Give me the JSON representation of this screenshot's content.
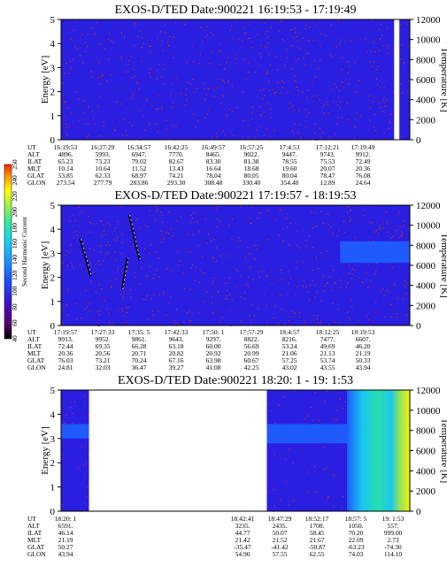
{
  "colors": {
    "background": "#2a1ee0",
    "sparse_dot": "#c03020",
    "colorbar": [
      "#000000",
      "#5a0070",
      "#3a10c8",
      "#1e48ff",
      "#1a96ff",
      "#17d2f0",
      "#28e8a8",
      "#9ef04a",
      "#ffff00",
      "#ff9a00",
      "#ff2000"
    ]
  },
  "colorbar": {
    "label": "Second Harmonic Current",
    "ticks": [
      "40",
      "60",
      "80",
      "100",
      "120",
      "140",
      "160",
      "180",
      "200",
      "220",
      "240",
      "250"
    ]
  },
  "chart_data": [
    {
      "type": "heatmap",
      "title": "EXOS-D/TED   Date:900221   16:19:53 - 17:19:49",
      "ylabel": "Energy [eV]",
      "ylabel_right": "Temperature [K]",
      "ylim": [
        0,
        5
      ],
      "yticks": [
        "0",
        "1",
        "2",
        "3",
        "4",
        "5"
      ],
      "ylim_right": [
        0,
        12000
      ],
      "yticks_right": [
        "0",
        "2000",
        "4000",
        "6000",
        "8000",
        "10000",
        "12000"
      ],
      "data_gap_fraction": [
        0.955,
        0.97
      ],
      "features": [],
      "table": {
        "row_labels": [
          "UT",
          "ALT",
          "ILAT",
          "MLT",
          "GLAT",
          "GLON"
        ],
        "columns": [
          [
            "16:19:53",
            "4896.",
            "65.23",
            "10.14",
            "53.85",
            "273.54"
          ],
          [
            "16:27:29",
            "5993.",
            "73.23",
            "10.64",
            "62.33",
            "277.79"
          ],
          [
            "16:34:57",
            "6947.",
            "79.02",
            "11.52",
            "68.97",
            "283.86"
          ],
          [
            "16:42:25",
            "7770.",
            "82.67",
            "13.43",
            "74.21",
            "293.30"
          ],
          [
            "16:49:57",
            "8465.",
            "83.30",
            "16.64",
            "78.04",
            "308.48"
          ],
          [
            "16:57:25",
            "9022.",
            "81.38",
            "18.68",
            "80.05",
            "330.40"
          ],
          [
            "17:4:53",
            "9447.",
            "78.55",
            "19.60",
            "80.04",
            "354.40"
          ],
          [
            "17:12:21",
            "9743.",
            "75.53",
            "20.07",
            "78.47",
            "12.89"
          ],
          [
            "17:19:49",
            "9912.",
            "72.49",
            "20.36",
            "76.08",
            "24.64"
          ]
        ]
      }
    },
    {
      "type": "heatmap",
      "title": "EXOS-D/TED   Date:900221   17:19:57 - 18:19:53",
      "ylabel": "Energy [eV]",
      "ylabel_right": "Temperature [K]",
      "ylim": [
        0,
        5
      ],
      "yticks": [
        "0",
        "1",
        "2",
        "3",
        "4",
        "5"
      ],
      "ylim_right": [
        0,
        12000
      ],
      "yticks_right": [
        "0",
        "2000",
        "4000",
        "6000",
        "8000",
        "10000",
        "12000"
      ],
      "features": [
        {
          "kind": "streak",
          "from": [
            0.055,
            3.6
          ],
          "to": [
            0.085,
            2.05
          ]
        },
        {
          "kind": "streak",
          "from": [
            0.195,
            4.6
          ],
          "to": [
            0.225,
            2.7
          ]
        },
        {
          "kind": "streak",
          "from": [
            0.175,
            1.5
          ],
          "to": [
            0.19,
            2.8
          ]
        },
        {
          "kind": "patch",
          "x": [
            0.8,
            1.0
          ],
          "y": [
            2.6,
            3.5
          ]
        }
      ],
      "table": {
        "row_labels": [
          "UT",
          "ALT",
          "ILAT",
          "MLT",
          "GLAT",
          "GLON"
        ],
        "columns": [
          [
            "17:19:57",
            "9913.",
            "72.44",
            "20.36",
            "76.03",
            "24.81"
          ],
          [
            "17:27:33",
            "9952.",
            "69.35",
            "20.56",
            "73.21",
            "32.03"
          ],
          [
            "17:35: 5",
            "9861.",
            "66.28",
            "20.71",
            "70.24",
            "36.47"
          ],
          [
            "17:42:33",
            "9643.",
            "63.18",
            "20.82",
            "67.16",
            "39.27"
          ],
          [
            "17:50: 1",
            "9297.",
            "60.00",
            "20.92",
            "63.98",
            "41.08"
          ],
          [
            "17:57:29",
            "8822.",
            "56.69",
            "20.99",
            "60.67",
            "42.25"
          ],
          [
            "18:4:57",
            "8216.",
            "53.24",
            "21.06",
            "57.25",
            "43.02"
          ],
          [
            "18:12:25",
            "7477.",
            "49.69",
            "21.13",
            "53.74",
            "43.55"
          ],
          [
            "18:19:53",
            "6607.",
            "46.20",
            "21.19",
            "50.33",
            "43.94"
          ]
        ]
      }
    },
    {
      "type": "heatmap",
      "title": "EXOS-D/TED   Date:900221   18:20: 1 - 19: 1:53",
      "ylabel": "Energy [eV]",
      "ylabel_right": "Temperature [K]",
      "ylim": [
        0,
        5
      ],
      "yticks": [
        "0",
        "1",
        "2",
        "3",
        "4",
        "5"
      ],
      "ylim_right": [
        0,
        12000
      ],
      "yticks_right": [
        "0",
        "2000",
        "4000",
        "6000",
        "8000",
        "10000",
        "12000"
      ],
      "data_gap_fraction": [
        0.08,
        0.59
      ],
      "features": [
        {
          "kind": "patch",
          "x": [
            0,
            0.08
          ],
          "y": [
            3.0,
            3.6
          ]
        },
        {
          "kind": "patch",
          "x": [
            0.59,
            0.82
          ],
          "y": [
            2.8,
            3.6
          ]
        },
        {
          "kind": "patch",
          "x": [
            0.82,
            1.0
          ],
          "y": [
            0,
            5
          ]
        }
      ],
      "table": {
        "row_labels": [
          "UT",
          "ALT",
          "ILAT",
          "MLT",
          "GLAT",
          "GLON"
        ],
        "columns": [
          [
            "18:20: 1",
            "6591.",
            "46.14",
            "21.19",
            "50.27",
            "43.94"
          ],
          [
            "18:42:41",
            "3235.",
            "44.77",
            "21.42",
            "-35.47",
            "54.90"
          ],
          [
            "18:47:29",
            "2435.",
            "50.07",
            "21.52",
            "-41.42",
            "57.55"
          ],
          [
            "18:52:17",
            "1708.",
            "58.45",
            "21.67",
            "-50.87",
            "62.55"
          ],
          [
            "18:57: 5",
            "1050.",
            "70.20",
            "22.09",
            "-63.23",
            "74.03"
          ],
          [
            "19: 1:53",
            "557.",
            "999.00",
            "2.73",
            "-74.30",
            "114.10"
          ]
        ]
      }
    }
  ]
}
